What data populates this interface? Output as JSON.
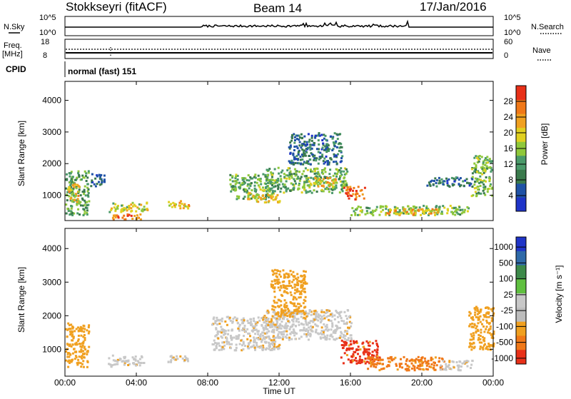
{
  "header": {
    "station": "Stokkseyri (fitACF)",
    "beam": "Beam 14",
    "date": "17/Jan/2016"
  },
  "top_panels": {
    "nsky_label": "N.Sky",
    "nsky_ticks": [
      "10^5",
      "10^0"
    ],
    "nsearch_label": "N.Search",
    "nsearch_ticks": [
      "10^5",
      "10^0"
    ],
    "freq_label": "Freq.",
    "freq_unit": "[MHz]",
    "freq_ticks": [
      "18",
      "8"
    ],
    "nave_label": "Nave",
    "nave_ticks": [
      "60",
      "0"
    ],
    "cpid_label": "CPID",
    "cpid_value": "normal (fast) 151"
  },
  "colors": {
    "power_scale": [
      "#1f34c8",
      "#1f52a6",
      "#3a7a4c",
      "#4a9a6a",
      "#8fc83a",
      "#e0d020",
      "#f0a020",
      "#f07818",
      "#e83018"
    ],
    "velocity_scale": [
      "#1f34c8",
      "#2f6aa8",
      "#3d8a4a",
      "#60c040",
      "#c8c8c8",
      "#bdbdbd",
      "#f0a020",
      "#f07818",
      "#e83018"
    ]
  },
  "chart_data": [
    {
      "type": "heatmap",
      "name": "power",
      "ylabel": "Slant Range [km]",
      "yticks": [
        "1000",
        "2000",
        "3000",
        "4000"
      ],
      "ylim": [
        200,
        4600
      ],
      "xlim": [
        "00:00",
        "24:00"
      ],
      "colorbar_label": "Power [dB]",
      "colorbar_ticks": [
        "4",
        "8",
        "12",
        "16",
        "20",
        "24",
        "28"
      ],
      "colorbar_range": [
        0,
        32
      ],
      "regions": [
        {
          "t0": 0.0,
          "t1": 1.3,
          "r0": 400,
          "r1": 1800,
          "v": 12
        },
        {
          "t0": 0.1,
          "t1": 0.8,
          "r0": 800,
          "r1": 1400,
          "v": 20
        },
        {
          "t0": 1.4,
          "t1": 2.2,
          "r0": 1300,
          "r1": 1700,
          "v": 8
        },
        {
          "t0": 2.4,
          "t1": 4.6,
          "r0": 500,
          "r1": 800,
          "v": 18
        },
        {
          "t0": 2.6,
          "t1": 4.2,
          "r0": 250,
          "r1": 450,
          "v": 26
        },
        {
          "t0": 5.7,
          "t1": 6.9,
          "r0": 600,
          "r1": 850,
          "v": 22
        },
        {
          "t0": 9.2,
          "t1": 11.6,
          "r0": 900,
          "r1": 1700,
          "v": 14
        },
        {
          "t0": 10.2,
          "t1": 12.0,
          "r0": 800,
          "r1": 1100,
          "v": 20
        },
        {
          "t0": 11.2,
          "t1": 15.8,
          "r0": 1100,
          "r1": 1900,
          "v": 14
        },
        {
          "t0": 12.5,
          "t1": 15.5,
          "r0": 2000,
          "r1": 3000,
          "v": 8
        },
        {
          "t0": 13.8,
          "t1": 15.2,
          "r0": 1300,
          "r1": 1600,
          "v": 21
        },
        {
          "t0": 15.6,
          "t1": 16.8,
          "r0": 900,
          "r1": 1300,
          "v": 27
        },
        {
          "t0": 16.0,
          "t1": 22.6,
          "r0": 400,
          "r1": 700,
          "v": 15
        },
        {
          "t0": 18.0,
          "t1": 21.0,
          "r0": 400,
          "r1": 600,
          "v": 22
        },
        {
          "t0": 20.2,
          "t1": 22.8,
          "r0": 1300,
          "r1": 1600,
          "v": 8
        },
        {
          "t0": 22.7,
          "t1": 23.9,
          "r0": 1000,
          "r1": 2300,
          "v": 14
        }
      ]
    },
    {
      "type": "heatmap",
      "name": "velocity",
      "ylabel": "Slant Range [km]",
      "yticks": [
        "1000",
        "2000",
        "3000",
        "4000"
      ],
      "ylim": [
        200,
        4600
      ],
      "xlim": [
        "00:00",
        "24:00"
      ],
      "xticks": [
        "00:00",
        "04:00",
        "08:00",
        "12:00",
        "16:00",
        "20:00",
        "00:00"
      ],
      "xlabel": "Time UT",
      "colorbar_label": "Velocity [m s⁻¹]",
      "colorbar_ticks": [
        "1000",
        "500",
        "100",
        "25",
        "-25",
        "-100",
        "-500",
        "-1000"
      ],
      "regions": [
        {
          "t0": 0.0,
          "t1": 1.3,
          "r0": 500,
          "r1": 1800,
          "v": "-100"
        },
        {
          "t0": 2.4,
          "t1": 4.4,
          "r0": 500,
          "r1": 850,
          "v": "0"
        },
        {
          "t0": 5.7,
          "t1": 6.9,
          "r0": 600,
          "r1": 850,
          "v": "0"
        },
        {
          "t0": 8.2,
          "t1": 12.0,
          "r0": 1000,
          "r1": 2000,
          "v": "0"
        },
        {
          "t0": 11.0,
          "t1": 16.0,
          "r0": 1300,
          "r1": 2200,
          "v": "0"
        },
        {
          "t0": 11.5,
          "t1": 13.5,
          "r0": 2000,
          "r1": 3400,
          "v": "-100"
        },
        {
          "t0": 15.4,
          "t1": 17.6,
          "r0": 600,
          "r1": 1300,
          "v": "-1000"
        },
        {
          "t0": 16.8,
          "t1": 21.2,
          "r0": 400,
          "r1": 800,
          "v": "-500"
        },
        {
          "t0": 21.0,
          "t1": 22.8,
          "r0": 400,
          "r1": 700,
          "v": "0"
        },
        {
          "t0": 22.6,
          "t1": 24.0,
          "r0": 1000,
          "r1": 2300,
          "v": "-100"
        }
      ]
    }
  ]
}
